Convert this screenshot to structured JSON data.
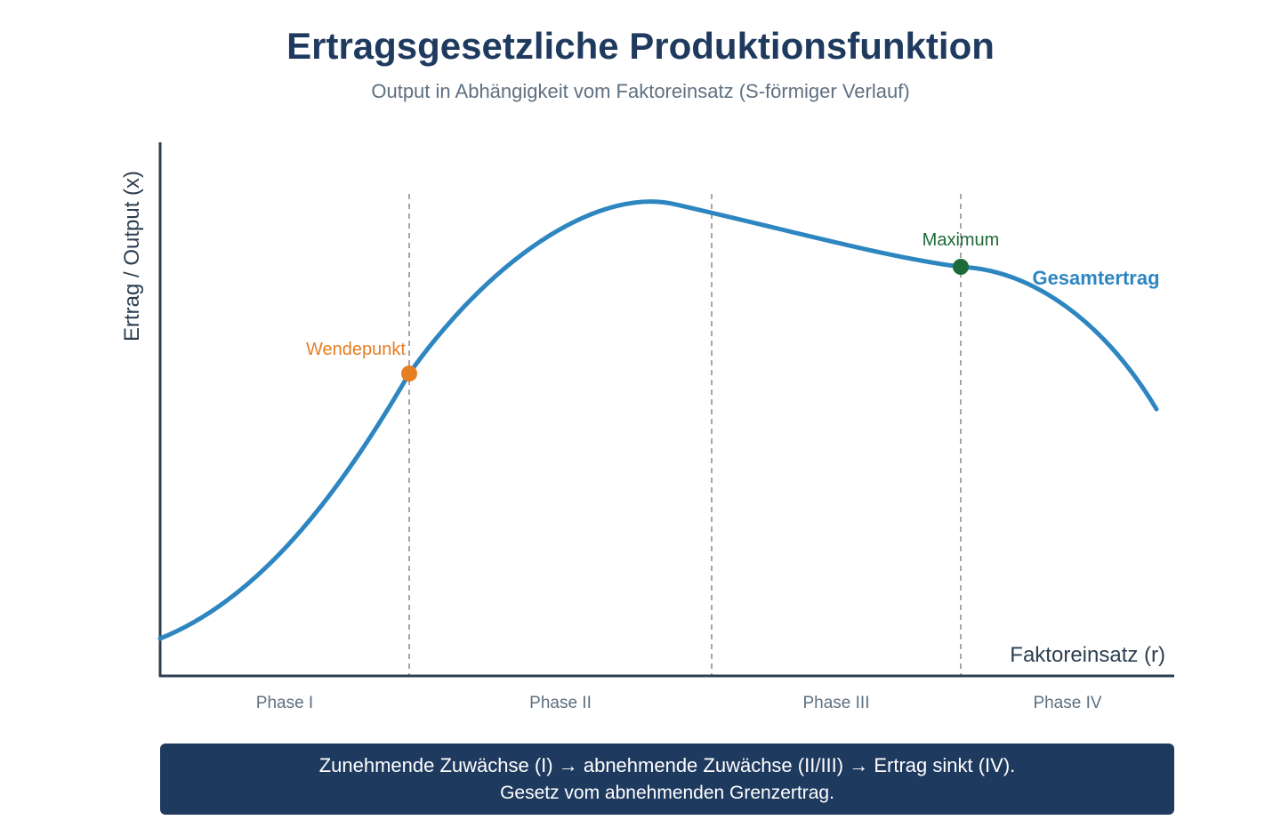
{
  "header": {
    "title": "Ertragsgesetzliche Produktionsfunktion",
    "subtitle": "Output in Abhängigkeit vom Faktoreinsatz (S-förmiger Verlauf)"
  },
  "axes": {
    "y_label": "Ertrag / Output (x)",
    "x_label": "Faktoreinsatz (r)"
  },
  "curve": {
    "label": "Gesamtertrag",
    "color": "#2e86c1"
  },
  "points": {
    "inflection": {
      "label": "Wendepunkt",
      "color": "#e67e22"
    },
    "maximum": {
      "label": "Maximum",
      "color": "#1e6b3a"
    }
  },
  "phases": [
    {
      "label": "Phase I"
    },
    {
      "label": "Phase II"
    },
    {
      "label": "Phase III"
    },
    {
      "label": "Phase IV"
    }
  ],
  "note": {
    "line1": "Zunehmende Zuwächse (I) → abnehmende Zuwächse (II/III) → Ertrag sinkt (IV).",
    "line2": "Gesetz vom abnehmenden Grenzertrag."
  },
  "colors": {
    "title": "#1f3a5f",
    "subtitle": "#5f7080",
    "axis": "#2c3e50",
    "divider": "#888888",
    "note_background": "#1f3a5f"
  }
}
